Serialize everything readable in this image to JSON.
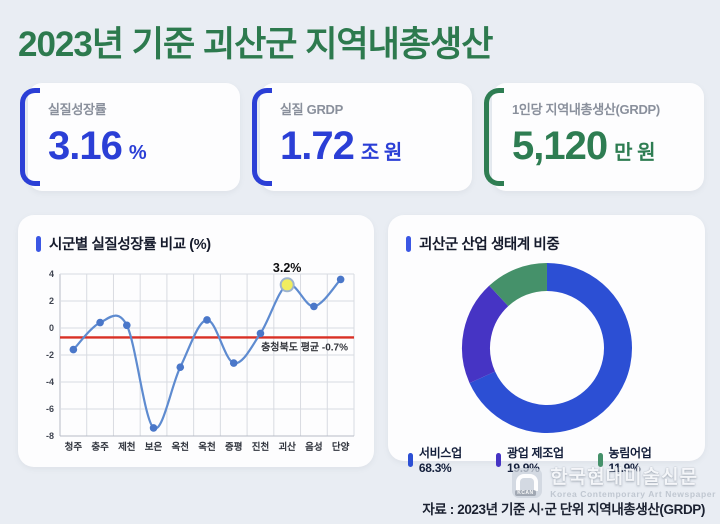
{
  "header": {
    "title": "2023년 기준 괴산군 지역내총생산"
  },
  "cards": [
    {
      "label": "실질성장률",
      "value": "3.16",
      "unit": "%",
      "accent": "#2b3fd6"
    },
    {
      "label": "실질 GRDP",
      "value": "1.72",
      "unit": "조 원",
      "accent": "#2b3fd6"
    },
    {
      "label": "1인당 지역내총생산(GRDP)",
      "value": "5,120",
      "unit": "만 원",
      "accent": "#2e7d52"
    }
  ],
  "chart_data": [
    {
      "type": "line",
      "title": "시군별 실질성장률 비교 (%)",
      "categories": [
        "청주",
        "충주",
        "제천",
        "보은",
        "옥천",
        "옥천",
        "증평",
        "진천",
        "괴산",
        "음성",
        "단양"
      ],
      "values": [
        -1.6,
        0.4,
        0.2,
        -7.4,
        -2.9,
        0.6,
        -2.6,
        -0.4,
        3.2,
        1.6,
        3.6
      ],
      "ylim": [
        -8,
        4
      ],
      "yticks": [
        4,
        2,
        0,
        -2,
        -4,
        -6,
        -8
      ],
      "grid": true,
      "legend_position": "none",
      "line_color": "#5e8bd0",
      "marker_color": "#4a77c9",
      "reference_line": {
        "value": -0.7,
        "label": "충청북도 평균 -0.7%",
        "color": "#d93025"
      },
      "highlight": {
        "index": 8,
        "label": "3.2%",
        "fill": "#f1ee5f"
      }
    },
    {
      "type": "pie",
      "title": "괴산군 산업 생태계 비중",
      "donut": true,
      "legend_position": "bottom",
      "slices": [
        {
          "label": "서비스업",
          "value": 68.3,
          "color": "#2c4fd4"
        },
        {
          "label": "광업 제조업",
          "value": 19.9,
          "color": "#4634c4"
        },
        {
          "label": "농림어업",
          "value": 11.9,
          "color": "#45916a"
        }
      ]
    }
  ],
  "watermark": {
    "logo_text": "KCAN",
    "title": "한국현대미술신문",
    "subtitle": "Korea Contemporary Art Newspaper"
  },
  "footer": {
    "source": "자료 : 2023년 기준 시·군 단위 지역내총생산(GRDP)"
  }
}
